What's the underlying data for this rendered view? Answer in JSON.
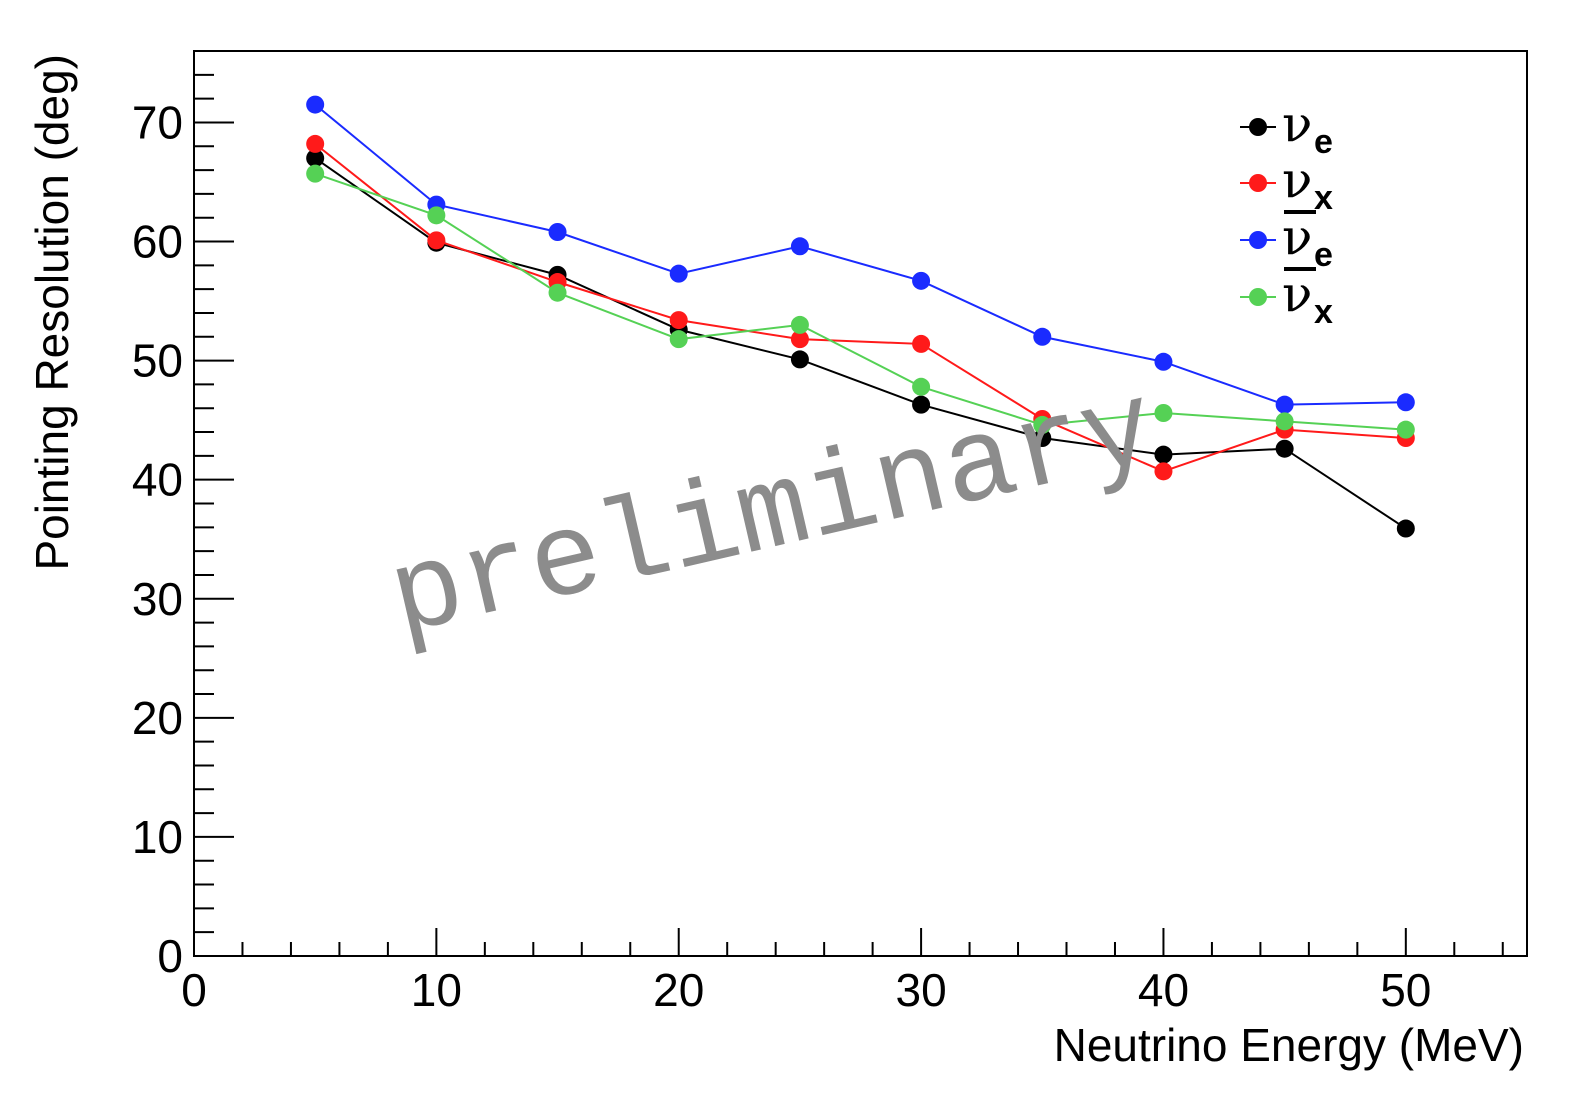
{
  "chart_data": {
    "type": "line",
    "title": "",
    "xlabel": "Neutrino Energy (MeV)",
    "ylabel": "Pointing Resolution (deg)",
    "xlim": [
      0,
      55
    ],
    "ylim": [
      0,
      76
    ],
    "x_ticks": [
      "0",
      "10",
      "20",
      "30",
      "40",
      "50"
    ],
    "y_ticks": [
      "0",
      "10",
      "20",
      "30",
      "40",
      "50",
      "60",
      "70"
    ],
    "x": [
      5,
      10,
      15,
      20,
      25,
      30,
      35,
      40,
      45,
      50
    ],
    "legend_position": "top-right",
    "series": [
      {
        "name": "ν_e",
        "symbol": "ν",
        "subscript": "e",
        "bar": false,
        "color": "#000000",
        "values": [
          67.0,
          59.9,
          57.2,
          52.6,
          50.1,
          46.3,
          43.5,
          42.1,
          42.6,
          35.9
        ]
      },
      {
        "name": "ν_x",
        "symbol": "ν",
        "subscript": "x",
        "bar": false,
        "color": "#ff1a1a",
        "values": [
          68.2,
          60.1,
          56.6,
          53.4,
          51.8,
          51.4,
          45.1,
          40.7,
          44.2,
          43.5
        ]
      },
      {
        "name": "anti-ν_e",
        "symbol": "ν",
        "subscript": "e",
        "bar": true,
        "color": "#1a2bff",
        "values": [
          71.5,
          63.1,
          60.8,
          57.3,
          59.6,
          56.7,
          52.0,
          49.9,
          46.3,
          46.5
        ]
      },
      {
        "name": "anti-ν_x",
        "symbol": "ν",
        "subscript": "x",
        "bar": true,
        "color": "#55d155",
        "values": [
          65.7,
          62.2,
          55.7,
          51.8,
          53.0,
          47.8,
          44.6,
          45.6,
          44.9,
          44.2
        ]
      }
    ],
    "watermark": "preliminary"
  }
}
